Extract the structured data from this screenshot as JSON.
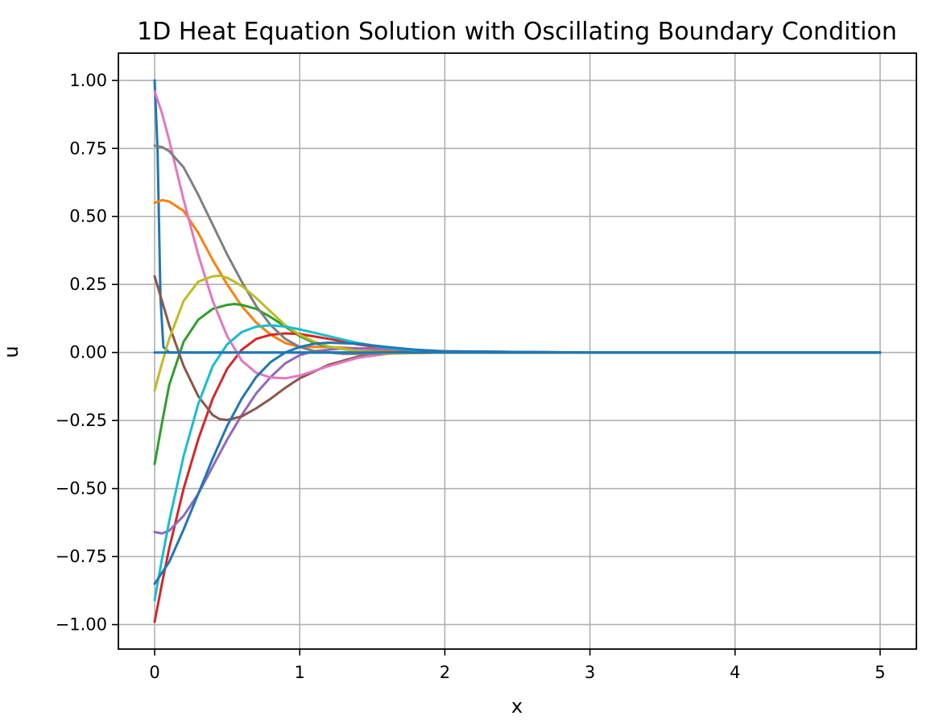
{
  "chart_data": {
    "type": "line",
    "title": "1D Heat Equation Solution with Oscillating Boundary Condition",
    "xlabel": "x",
    "ylabel": "u",
    "xlim": [
      -0.25,
      5.25
    ],
    "ylim": [
      -1.09,
      1.1
    ],
    "grid": true,
    "x_ticks": [
      0,
      1,
      2,
      3,
      4,
      5
    ],
    "x_tick_labels": [
      "0",
      "1",
      "2",
      "3",
      "4",
      "5"
    ],
    "y_ticks": [
      1.0,
      0.75,
      0.5,
      0.25,
      0.0,
      -0.25,
      -0.5,
      -0.75,
      -1.0
    ],
    "y_tick_labels": [
      "1.00",
      "0.75",
      "0.50",
      "0.25",
      "0.00",
      "−0.25",
      "−0.50",
      "−0.75",
      "−1.00"
    ],
    "series": [
      {
        "color": "#1f77b4",
        "points": [
          [
            0,
            1.0
          ],
          [
            0.02,
            0.75
          ],
          [
            0.04,
            0.2
          ],
          [
            0.06,
            0.02
          ],
          [
            0.1,
            0.0
          ],
          [
            1,
            0.0
          ],
          [
            2,
            0.0
          ],
          [
            3,
            0.0
          ],
          [
            4,
            0.0
          ],
          [
            5,
            0.0
          ]
        ]
      },
      {
        "color": "#ff7f0e",
        "points": [
          [
            0,
            0.55
          ],
          [
            0.05,
            0.56
          ],
          [
            0.1,
            0.555
          ],
          [
            0.2,
            0.52
          ],
          [
            0.3,
            0.44
          ],
          [
            0.4,
            0.34
          ],
          [
            0.5,
            0.25
          ],
          [
            0.6,
            0.17
          ],
          [
            0.7,
            0.11
          ],
          [
            0.8,
            0.065
          ],
          [
            0.9,
            0.035
          ],
          [
            1.0,
            0.02
          ],
          [
            1.2,
            0.02
          ],
          [
            1.4,
            0.015
          ],
          [
            1.6,
            0.008
          ],
          [
            2.0,
            0.0
          ],
          [
            3,
            0.0
          ],
          [
            4,
            0.0
          ],
          [
            5,
            0.0
          ]
        ]
      },
      {
        "color": "#2ca02c",
        "points": [
          [
            0,
            -0.41
          ],
          [
            0.05,
            -0.26
          ],
          [
            0.1,
            -0.12
          ],
          [
            0.2,
            0.04
          ],
          [
            0.3,
            0.12
          ],
          [
            0.4,
            0.16
          ],
          [
            0.5,
            0.175
          ],
          [
            0.55,
            0.178
          ],
          [
            0.6,
            0.175
          ],
          [
            0.7,
            0.16
          ],
          [
            0.8,
            0.13
          ],
          [
            0.9,
            0.095
          ],
          [
            1.0,
            0.06
          ],
          [
            1.1,
            0.035
          ],
          [
            1.2,
            0.02
          ],
          [
            1.4,
            0.005
          ],
          [
            1.6,
            0.0
          ],
          [
            2.0,
            0.0
          ],
          [
            3,
            0.0
          ],
          [
            4,
            0.0
          ],
          [
            5,
            0.0
          ]
        ]
      },
      {
        "color": "#d62728",
        "points": [
          [
            0,
            -0.99
          ],
          [
            0.05,
            -0.85
          ],
          [
            0.1,
            -0.72
          ],
          [
            0.2,
            -0.5
          ],
          [
            0.3,
            -0.32
          ],
          [
            0.4,
            -0.17
          ],
          [
            0.5,
            -0.06
          ],
          [
            0.6,
            0.01
          ],
          [
            0.7,
            0.05
          ],
          [
            0.8,
            0.065
          ],
          [
            0.9,
            0.07
          ],
          [
            1.0,
            0.068
          ],
          [
            1.2,
            0.05
          ],
          [
            1.4,
            0.03
          ],
          [
            1.6,
            0.015
          ],
          [
            1.8,
            0.006
          ],
          [
            2.0,
            0.002
          ],
          [
            3,
            0.0
          ],
          [
            4,
            0.0
          ],
          [
            5,
            0.0
          ]
        ]
      },
      {
        "color": "#9467bd",
        "points": [
          [
            0,
            -0.66
          ],
          [
            0.05,
            -0.665
          ],
          [
            0.1,
            -0.655
          ],
          [
            0.2,
            -0.6
          ],
          [
            0.3,
            -0.52
          ],
          [
            0.4,
            -0.42
          ],
          [
            0.5,
            -0.32
          ],
          [
            0.6,
            -0.23
          ],
          [
            0.7,
            -0.15
          ],
          [
            0.8,
            -0.09
          ],
          [
            0.9,
            -0.04
          ],
          [
            1.0,
            -0.01
          ],
          [
            1.1,
            0.005
          ],
          [
            1.3,
            0.015
          ],
          [
            1.5,
            0.015
          ],
          [
            1.8,
            0.008
          ],
          [
            2.0,
            0.004
          ],
          [
            3,
            0.0
          ],
          [
            4,
            0.0
          ],
          [
            5,
            0.0
          ]
        ]
      },
      {
        "color": "#8c564b",
        "points": [
          [
            0,
            0.28
          ],
          [
            0.05,
            0.19
          ],
          [
            0.1,
            0.1
          ],
          [
            0.2,
            -0.05
          ],
          [
            0.3,
            -0.16
          ],
          [
            0.4,
            -0.23
          ],
          [
            0.45,
            -0.245
          ],
          [
            0.5,
            -0.248
          ],
          [
            0.6,
            -0.235
          ],
          [
            0.7,
            -0.205
          ],
          [
            0.8,
            -0.17
          ],
          [
            0.9,
            -0.13
          ],
          [
            1.0,
            -0.095
          ],
          [
            1.2,
            -0.045
          ],
          [
            1.4,
            -0.015
          ],
          [
            1.6,
            0.0
          ],
          [
            1.8,
            0.004
          ],
          [
            2.0,
            0.004
          ],
          [
            3,
            0.0
          ],
          [
            4,
            0.0
          ],
          [
            5,
            0.0
          ]
        ]
      },
      {
        "color": "#e377c2",
        "points": [
          [
            0,
            0.96
          ],
          [
            0.05,
            0.88
          ],
          [
            0.1,
            0.78
          ],
          [
            0.2,
            0.56
          ],
          [
            0.3,
            0.36
          ],
          [
            0.4,
            0.19
          ],
          [
            0.5,
            0.06
          ],
          [
            0.6,
            -0.03
          ],
          [
            0.7,
            -0.075
          ],
          [
            0.8,
            -0.092
          ],
          [
            0.9,
            -0.095
          ],
          [
            1.0,
            -0.085
          ],
          [
            1.2,
            -0.05
          ],
          [
            1.4,
            -0.02
          ],
          [
            1.6,
            -0.005
          ],
          [
            1.8,
            0.0
          ],
          [
            2.0,
            0.003
          ],
          [
            3,
            0.0
          ],
          [
            4,
            0.0
          ],
          [
            5,
            0.0
          ]
        ]
      },
      {
        "color": "#7f7f7f",
        "points": [
          [
            0,
            0.76
          ],
          [
            0.05,
            0.755
          ],
          [
            0.1,
            0.74
          ],
          [
            0.2,
            0.68
          ],
          [
            0.3,
            0.58
          ],
          [
            0.4,
            0.47
          ],
          [
            0.5,
            0.36
          ],
          [
            0.6,
            0.26
          ],
          [
            0.7,
            0.17
          ],
          [
            0.8,
            0.1
          ],
          [
            0.9,
            0.05
          ],
          [
            1.0,
            0.02
          ],
          [
            1.1,
            0.005
          ],
          [
            1.3,
            -0.005
          ],
          [
            1.5,
            -0.005
          ],
          [
            1.8,
            -0.002
          ],
          [
            2.0,
            0.0
          ],
          [
            3,
            0.0
          ],
          [
            4,
            0.0
          ],
          [
            5,
            0.0
          ]
        ]
      },
      {
        "color": "#bcbd22",
        "points": [
          [
            0,
            -0.14
          ],
          [
            0.05,
            -0.04
          ],
          [
            0.1,
            0.05
          ],
          [
            0.2,
            0.19
          ],
          [
            0.3,
            0.26
          ],
          [
            0.4,
            0.28
          ],
          [
            0.45,
            0.282
          ],
          [
            0.5,
            0.275
          ],
          [
            0.6,
            0.245
          ],
          [
            0.7,
            0.2
          ],
          [
            0.8,
            0.15
          ],
          [
            0.9,
            0.1
          ],
          [
            1.0,
            0.065
          ],
          [
            1.1,
            0.04
          ],
          [
            1.2,
            0.022
          ],
          [
            1.4,
            0.005
          ],
          [
            1.6,
            -0.003
          ],
          [
            1.8,
            -0.002
          ],
          [
            2.0,
            0.0
          ],
          [
            3,
            0.0
          ],
          [
            4,
            0.0
          ],
          [
            5,
            0.0
          ]
        ]
      },
      {
        "color": "#17becf",
        "points": [
          [
            0,
            -0.91
          ],
          [
            0.05,
            -0.76
          ],
          [
            0.1,
            -0.62
          ],
          [
            0.2,
            -0.38
          ],
          [
            0.3,
            -0.19
          ],
          [
            0.4,
            -0.05
          ],
          [
            0.5,
            0.03
          ],
          [
            0.6,
            0.075
          ],
          [
            0.7,
            0.095
          ],
          [
            0.8,
            0.1
          ],
          [
            0.9,
            0.095
          ],
          [
            1.0,
            0.085
          ],
          [
            1.2,
            0.06
          ],
          [
            1.4,
            0.035
          ],
          [
            1.6,
            0.017
          ],
          [
            1.8,
            0.007
          ],
          [
            2.0,
            0.003
          ],
          [
            3,
            0.0
          ],
          [
            4,
            0.0
          ],
          [
            5,
            0.0
          ]
        ]
      },
      {
        "color": "#1f77b4",
        "points": [
          [
            0,
            -0.85
          ],
          [
            0.1,
            -0.77
          ],
          [
            0.2,
            -0.65
          ],
          [
            0.3,
            -0.52
          ],
          [
            0.4,
            -0.39
          ],
          [
            0.5,
            -0.27
          ],
          [
            0.6,
            -0.17
          ],
          [
            0.7,
            -0.09
          ],
          [
            0.8,
            -0.035
          ],
          [
            0.9,
            0.0
          ],
          [
            1.0,
            0.02
          ],
          [
            1.1,
            0.032
          ],
          [
            1.2,
            0.036
          ],
          [
            1.4,
            0.032
          ],
          [
            1.6,
            0.02
          ],
          [
            1.8,
            0.01
          ],
          [
            2.0,
            0.004
          ],
          [
            3,
            0.0
          ],
          [
            4,
            0.0
          ],
          [
            5,
            0.0
          ]
        ]
      },
      {
        "color": "#1f77b4",
        "points": [
          [
            0,
            0.0
          ],
          [
            1,
            0.0
          ],
          [
            2,
            0.0
          ],
          [
            3,
            0.0
          ],
          [
            4,
            0.0
          ],
          [
            5,
            0.0
          ]
        ]
      }
    ]
  }
}
